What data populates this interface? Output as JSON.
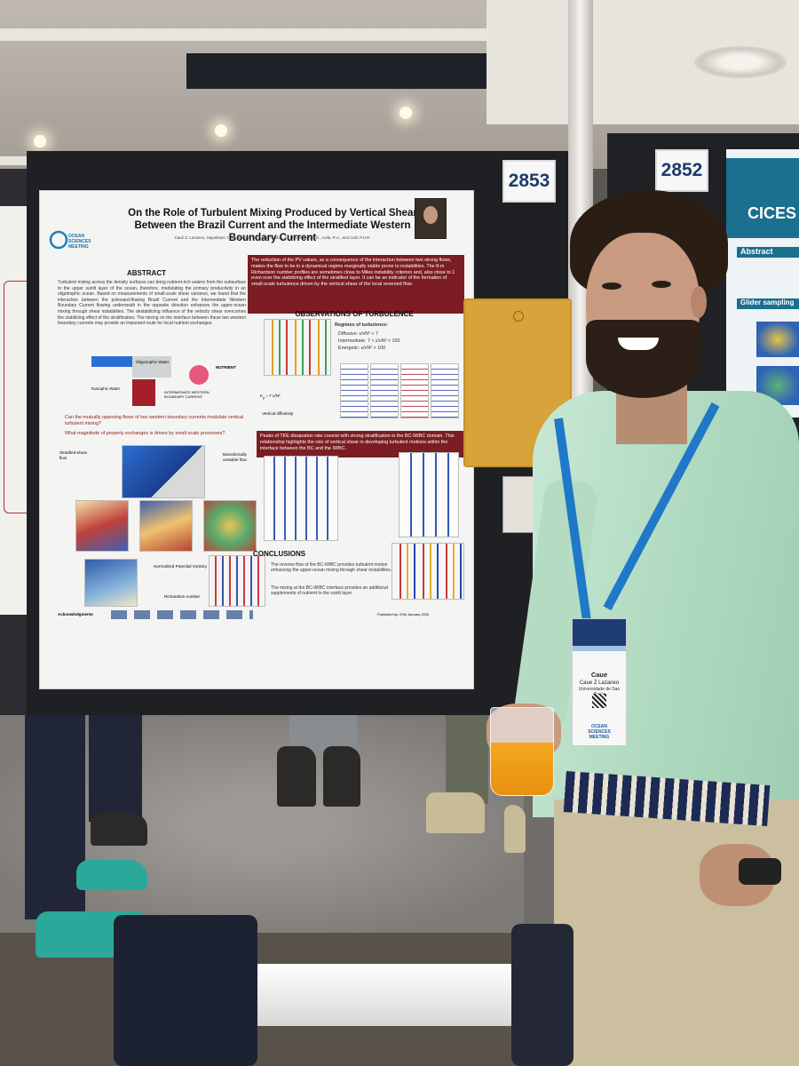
{
  "booths": {
    "main": "2853",
    "right": "2852"
  },
  "poster": {
    "title": "On the Role of Turbulent Mixing Produced by Vertical Shear Between the Brazil Current and the Intermediate Western Boundary Current",
    "logo_text": "OCEAN SCIENCES MEETING",
    "authors": "Caué Z. Lazaneo, Napolitano, D.C., Silveira, I.C.A. da, Tandon, A., MacDonald, D.G., Avila, R.A., and Calil, P.H.R.",
    "abstract_title": "ABSTRACT",
    "abstract_text": "Turbulent mixing across the density surfaces can bring nutrient-rich waters from the subsurface to the upper sunlit layer of the ocean, therefore, modulating the primary productivity in an oligotrophic ocean. Based on measurements of small-scale shear variance, we found that the interaction between the poleward-flowing Brazil Current and the Intermediate Western Boundary Current flowing underneath in the opposite direction enhances the upper-ocean mixing through shear instabilities. The destabilizing influence of the velocity shear overcomes the stabilizing effect of the stratification. The mixing on the interface between these two western boundary currents may provide an important route for local nutrient exchanges.",
    "intro_box": "The reduction of the PV values, as a consequence of the interaction between two strong flows, makes the flow to be in a dynamical regime marginally stable prone to instabilities. The 8-m Richardson number profiles are sometimes close to Miles instability criterion and, also close to 1 even over the stabilizing effect of the stratified layer. It can be an indicator of the formation of small-scale turbulence driven by the vertical shear of the local reversed flow.",
    "questions": [
      "Can the mutually opposing flows of two western boundary currents modulate vertical turbulent mixing?",
      "What magnitude of property exchanges is driven by small-scale processes?"
    ],
    "obs_title": "OBSERVATIONS OF TURBULENCE",
    "regimes_title": "Regimes of turbulence:",
    "regimes": [
      "Diffusive: ε/νN² < 7",
      "Intermediate: 7 < ε/νN² < 100",
      "Energetic: ε/νN² > 100"
    ],
    "diagram_labels": [
      "Oligotrophic Water",
      "Eutrophic Water",
      "NUTRIENT",
      "INTERMEDIATE WESTERN BOUNDARY CURRENT"
    ],
    "mid_box": "Peaks of TKE dissipation rate coexist with strong stratification in the BC-IWBC domain. This relationship highlights the role of vertical shear in developing turbulent motions within the interface between the BC and the IWBC.",
    "map_labels": [
      "Stratified-shear flow",
      "Baroclinically unstable flow"
    ],
    "pv_labels": [
      "Normalized Potential Vorticity",
      "Richardson number"
    ],
    "vertical_diffusivity": "Vertical diffusivity",
    "conclusions_title": "CONCLUSIONS",
    "conclusions": [
      "The reverse flow of the BC-IWBC provides turbulent motion enhancing the upper-ocean mixing through shear instabilities.",
      "The mixing at the BC-IWBC interface provides an additional supplements of nutrient to the sunlit layer."
    ],
    "footer_left": "Acknowledgments",
    "footer_right": "Published by: 20th January 2020"
  },
  "right_poster": {
    "logo": "CICES",
    "abstract_title": "Abstract",
    "glider_title": "Glider sampling"
  },
  "badge": {
    "first_name": "Caue",
    "full_name": "Caue Z Lazaneo",
    "institution": "Universidade de Sao Paulo",
    "logo": "OCEAN SCIENCES MEETING"
  },
  "colors": {
    "poster_red": "#7b1d22",
    "lanyard": "#1f78c8",
    "shirt": "#aed9bf",
    "envelope": "#d7a33a"
  }
}
